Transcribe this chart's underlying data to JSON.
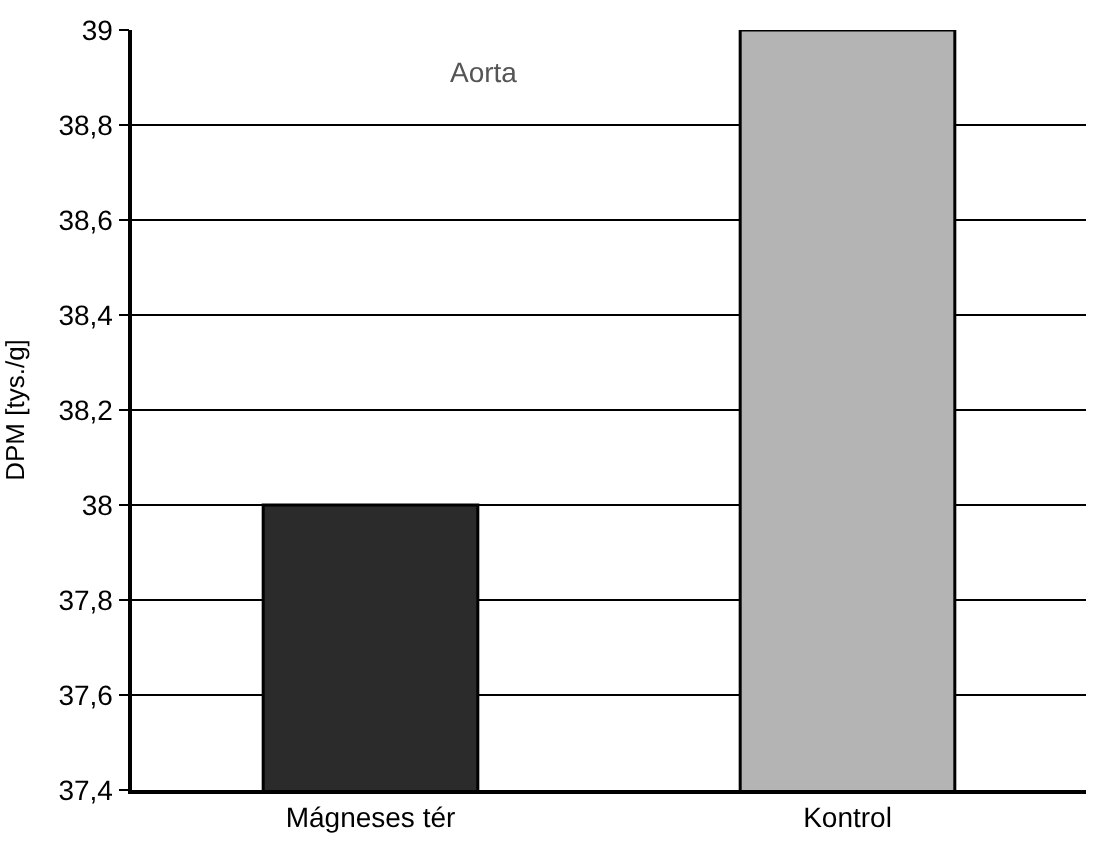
{
  "chart_data": {
    "type": "bar",
    "ylabel": "DPM [tys./g]",
    "categories": [
      "Mágneses tér",
      "Kontrol"
    ],
    "values": [
      38.0,
      39.0
    ],
    "colors": [
      "#2b2b2b",
      "#b4b4b4"
    ],
    "ylim": [
      37.4,
      39
    ],
    "yticks": [
      {
        "value": 37.4,
        "label": "37,4"
      },
      {
        "value": 37.6,
        "label": "37,6"
      },
      {
        "value": 37.8,
        "label": "37,8"
      },
      {
        "value": 38,
        "label": "38"
      },
      {
        "value": 38.2,
        "label": "38,2"
      },
      {
        "value": 38.4,
        "label": "38,4"
      },
      {
        "value": 38.6,
        "label": "38,6"
      },
      {
        "value": 38.8,
        "label": "38,8"
      },
      {
        "value": 39,
        "label": "39"
      }
    ],
    "grid": "y",
    "annotations": [
      "Aorta"
    ]
  }
}
